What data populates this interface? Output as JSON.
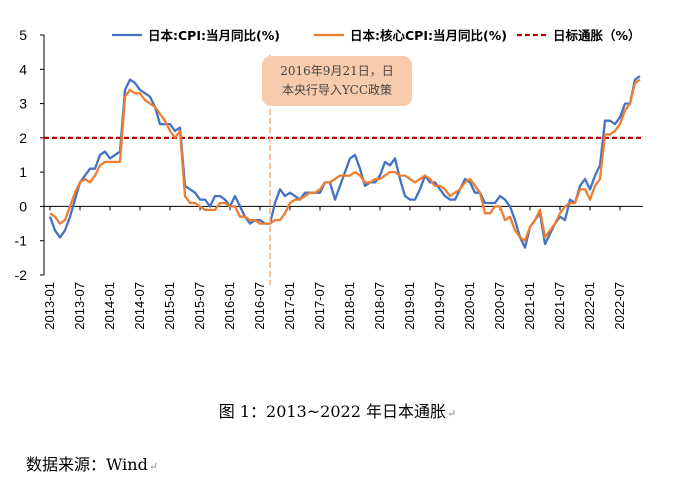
{
  "chart_data": {
    "type": "line",
    "x": [
      "2013-01",
      "2013-02",
      "2013-03",
      "2013-04",
      "2013-05",
      "2013-06",
      "2013-07",
      "2013-08",
      "2013-09",
      "2013-10",
      "2013-11",
      "2013-12",
      "2014-01",
      "2014-02",
      "2014-03",
      "2014-04",
      "2014-05",
      "2014-06",
      "2014-07",
      "2014-08",
      "2014-09",
      "2014-10",
      "2014-11",
      "2014-12",
      "2015-01",
      "2015-02",
      "2015-03",
      "2015-04",
      "2015-05",
      "2015-06",
      "2015-07",
      "2015-08",
      "2015-09",
      "2015-10",
      "2015-11",
      "2015-12",
      "2016-01",
      "2016-02",
      "2016-03",
      "2016-04",
      "2016-05",
      "2016-06",
      "2016-07",
      "2016-08",
      "2016-09",
      "2016-10",
      "2016-11",
      "2016-12",
      "2017-01",
      "2017-02",
      "2017-03",
      "2017-04",
      "2017-05",
      "2017-06",
      "2017-07",
      "2017-08",
      "2017-09",
      "2017-10",
      "2017-11",
      "2017-12",
      "2018-01",
      "2018-02",
      "2018-03",
      "2018-04",
      "2018-05",
      "2018-06",
      "2018-07",
      "2018-08",
      "2018-09",
      "2018-10",
      "2018-11",
      "2018-12",
      "2019-01",
      "2019-02",
      "2019-03",
      "2019-04",
      "2019-05",
      "2019-06",
      "2019-07",
      "2019-08",
      "2019-09",
      "2019-10",
      "2019-11",
      "2019-12",
      "2020-01",
      "2020-02",
      "2020-03",
      "2020-04",
      "2020-05",
      "2020-06",
      "2020-07",
      "2020-08",
      "2020-09",
      "2020-10",
      "2020-11",
      "2020-12",
      "2021-01",
      "2021-02",
      "2021-03",
      "2021-04",
      "2021-05",
      "2021-06",
      "2021-07",
      "2021-08",
      "2021-09",
      "2021-10",
      "2021-11",
      "2021-12",
      "2022-01",
      "2022-02",
      "2022-03",
      "2022-04",
      "2022-05",
      "2022-06",
      "2022-07",
      "2022-08",
      "2022-09",
      "2022-10",
      "2022-11"
    ],
    "tick_labels": [
      "2013-01",
      "2013-07",
      "2014-01",
      "2014-07",
      "2015-01",
      "2015-07",
      "2016-01",
      "2016-07",
      "2017-01",
      "2017-07",
      "2018-01",
      "2018-07",
      "2019-01",
      "2019-07",
      "2020-01",
      "2020-07",
      "2021-01",
      "2021-07",
      "2022-01",
      "2022-07"
    ],
    "ylim": [
      -2,
      5
    ],
    "yticks": [
      -2,
      -1,
      0,
      1,
      2,
      3,
      4,
      5
    ],
    "grid": false,
    "legend_position": "top",
    "series": [
      {
        "name": "日本:CPI:当月同比(%)",
        "color": "#4472C4",
        "values": [
          -0.3,
          -0.7,
          -0.9,
          -0.7,
          -0.3,
          0.2,
          0.7,
          0.9,
          1.1,
          1.1,
          1.5,
          1.6,
          1.4,
          1.5,
          1.6,
          3.4,
          3.7,
          3.6,
          3.4,
          3.3,
          3.2,
          2.9,
          2.4,
          2.4,
          2.4,
          2.2,
          2.3,
          0.6,
          0.5,
          0.4,
          0.2,
          0.2,
          0.0,
          0.3,
          0.3,
          0.2,
          0.0,
          0.3,
          0.0,
          -0.3,
          -0.5,
          -0.4,
          -0.4,
          -0.5,
          -0.5,
          0.1,
          0.5,
          0.3,
          0.4,
          0.3,
          0.2,
          0.4,
          0.4,
          0.4,
          0.4,
          0.7,
          0.7,
          0.2,
          0.6,
          1.0,
          1.4,
          1.5,
          1.1,
          0.6,
          0.7,
          0.7,
          0.9,
          1.3,
          1.2,
          1.4,
          0.8,
          0.3,
          0.2,
          0.2,
          0.5,
          0.9,
          0.7,
          0.7,
          0.5,
          0.3,
          0.2,
          0.2,
          0.5,
          0.8,
          0.7,
          0.4,
          0.4,
          0.1,
          0.1,
          0.1,
          0.3,
          0.2,
          0.0,
          -0.4,
          -0.9,
          -1.2,
          -0.6,
          -0.4,
          -0.2,
          -1.1,
          -0.8,
          -0.5,
          -0.3,
          -0.4,
          0.2,
          0.1,
          0.6,
          0.8,
          0.5,
          0.9,
          1.2,
          2.5,
          2.5,
          2.4,
          2.6,
          3.0,
          3.0,
          3.7,
          3.8
        ]
      },
      {
        "name": "日本:核心CPI:当月同比(%)",
        "color": "#ED7D31",
        "values": [
          -0.2,
          -0.3,
          -0.5,
          -0.4,
          0.0,
          0.4,
          0.7,
          0.8,
          0.7,
          0.9,
          1.2,
          1.3,
          1.3,
          1.3,
          1.3,
          3.2,
          3.4,
          3.3,
          3.3,
          3.1,
          3.0,
          2.9,
          2.7,
          2.5,
          2.2,
          2.0,
          2.2,
          0.3,
          0.1,
          0.1,
          0.0,
          -0.1,
          -0.1,
          -0.1,
          0.1,
          0.1,
          0.0,
          0.0,
          -0.3,
          -0.3,
          -0.4,
          -0.4,
          -0.5,
          -0.5,
          -0.5,
          -0.4,
          -0.4,
          -0.2,
          0.1,
          0.2,
          0.2,
          0.3,
          0.4,
          0.4,
          0.5,
          0.7,
          0.7,
          0.8,
          0.9,
          0.9,
          0.9,
          1.0,
          0.9,
          0.7,
          0.7,
          0.8,
          0.8,
          0.9,
          1.0,
          1.0,
          0.9,
          0.9,
          0.8,
          0.7,
          0.8,
          0.9,
          0.8,
          0.6,
          0.6,
          0.5,
          0.3,
          0.4,
          0.5,
          0.7,
          0.8,
          0.6,
          0.4,
          -0.2,
          -0.2,
          0.0,
          0.0,
          -0.4,
          -0.3,
          -0.7,
          -0.9,
          -1.0,
          -0.6,
          -0.4,
          -0.1,
          -0.9,
          -0.7,
          -0.5,
          -0.2,
          0.0,
          0.1,
          0.1,
          0.5,
          0.5,
          0.2,
          0.6,
          0.8,
          2.1,
          2.1,
          2.2,
          2.4,
          2.8,
          3.0,
          3.6,
          3.7
        ]
      },
      {
        "name": "日标通胀（%）",
        "color": "#C00000",
        "dashed": true,
        "constant": 2
      }
    ],
    "annotations": [
      {
        "text_lines": [
          "2016年9月21日，日",
          "本央行导入YCC政策"
        ],
        "x": "2016-09"
      }
    ]
  },
  "caption": "图 1：2013~2022 年日本通胀",
  "source_note": "数据来源：Wind"
}
